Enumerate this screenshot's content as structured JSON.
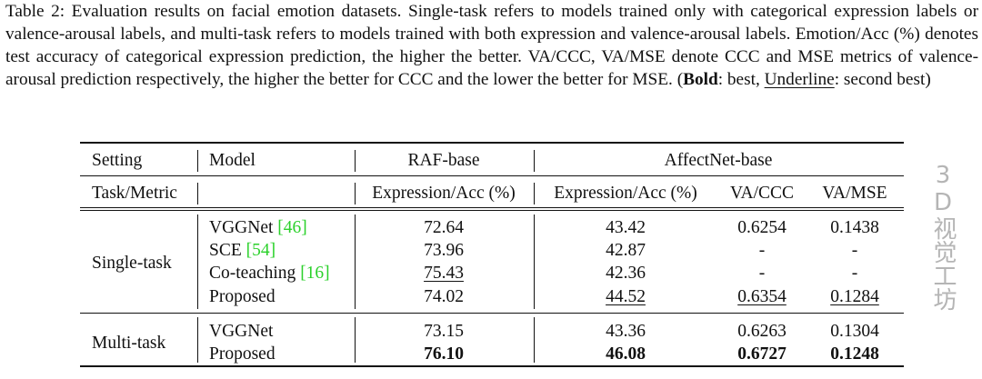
{
  "caption": {
    "label": "Table 2:",
    "text": " Evaluation results on facial emotion datasets. Single-task refers to models trained only with categorical expression labels or valence-arousal labels, and multi-task refers to models trained with both expression and valence-arousal labels. Emotion/Acc (%) denotes test accuracy of categorical expression prediction, the higher the better. VA/CCC, VA/MSE denote CCC and MSE metrics of valence-arousal prediction respectively, the higher the better for CCC and the lower the better for MSE. (",
    "bold": "Bold",
    "mid": ": best, ",
    "underline": "Underline",
    "end": ": second best)"
  },
  "header": {
    "setting": "Setting",
    "model": "Model",
    "raf": "RAF-base",
    "affect": "AffectNet-base",
    "task_metric": "Task/Metric",
    "raf_expr": "Expression/Acc (%)",
    "aff_expr": "Expression/Acc (%)",
    "va_ccc": "VA/CCC",
    "va_mse": "VA/MSE"
  },
  "groups": {
    "single": "Single-task",
    "multi": "Multi-task"
  },
  "rows": [
    {
      "model": "VGGNet ",
      "ref": "[46]",
      "raf": "72.64",
      "aff": "43.42",
      "ccc": "0.6254",
      "mse": "0.1438"
    },
    {
      "model": "SCE ",
      "ref": "[54]",
      "raf": "73.96",
      "aff": "42.87",
      "ccc": "-",
      "mse": "-"
    },
    {
      "model": "Co-teaching ",
      "ref": "[16]",
      "raf": "75.43",
      "aff": "42.36",
      "ccc": "-",
      "mse": "-"
    },
    {
      "model": "Proposed",
      "ref": "",
      "raf": "74.02",
      "aff": "44.52",
      "ccc": "0.6354",
      "mse": "0.1284"
    },
    {
      "model": "VGGNet",
      "ref": "",
      "raf": "73.15",
      "aff": "43.36",
      "ccc": "0.6263",
      "mse": "0.1304"
    },
    {
      "model": "Proposed",
      "ref": "",
      "raf": "76.10",
      "aff": "46.08",
      "ccc": "0.6727",
      "mse": "0.1248"
    }
  ],
  "watermark": "3D视觉工坊"
}
